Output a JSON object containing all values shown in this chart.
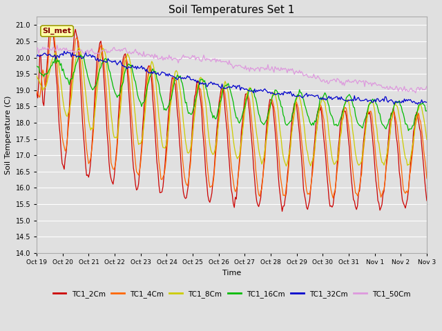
{
  "title": "Soil Temperatures Set 1",
  "xlabel": "Time",
  "ylabel": "Soil Temperature (C)",
  "ylim": [
    14.0,
    21.25
  ],
  "yticks": [
    14.0,
    14.5,
    15.0,
    15.5,
    16.0,
    16.5,
    17.0,
    17.5,
    18.0,
    18.5,
    19.0,
    19.5,
    20.0,
    20.5,
    21.0
  ],
  "xtick_labels": [
    "Oct 19",
    "Oct 20",
    "Oct 21",
    "Oct 22",
    "Oct 23",
    "Oct 24",
    "Oct 25",
    "Oct 26",
    "Oct 27",
    "Oct 28",
    "Oct 29",
    "Oct 30",
    "Oct 31",
    "Nov 1",
    "Nov 2",
    "Nov 3"
  ],
  "series_colors": [
    "#cc0000",
    "#ff6600",
    "#cccc00",
    "#00bb00",
    "#0000cc",
    "#dd99dd"
  ],
  "series_labels": [
    "TC1_2Cm",
    "TC1_4Cm",
    "TC1_8Cm",
    "TC1_16Cm",
    "TC1_32Cm",
    "TC1_50Cm"
  ],
  "background_color": "#e0e0e0",
  "plot_bg_color": "#e0e0e0",
  "annotation_text": "SI_met",
  "annotation_color": "#800000",
  "annotation_bg": "#ffffaa",
  "grid_color": "#ffffff",
  "figsize": [
    6.4,
    4.8
  ],
  "dpi": 100
}
